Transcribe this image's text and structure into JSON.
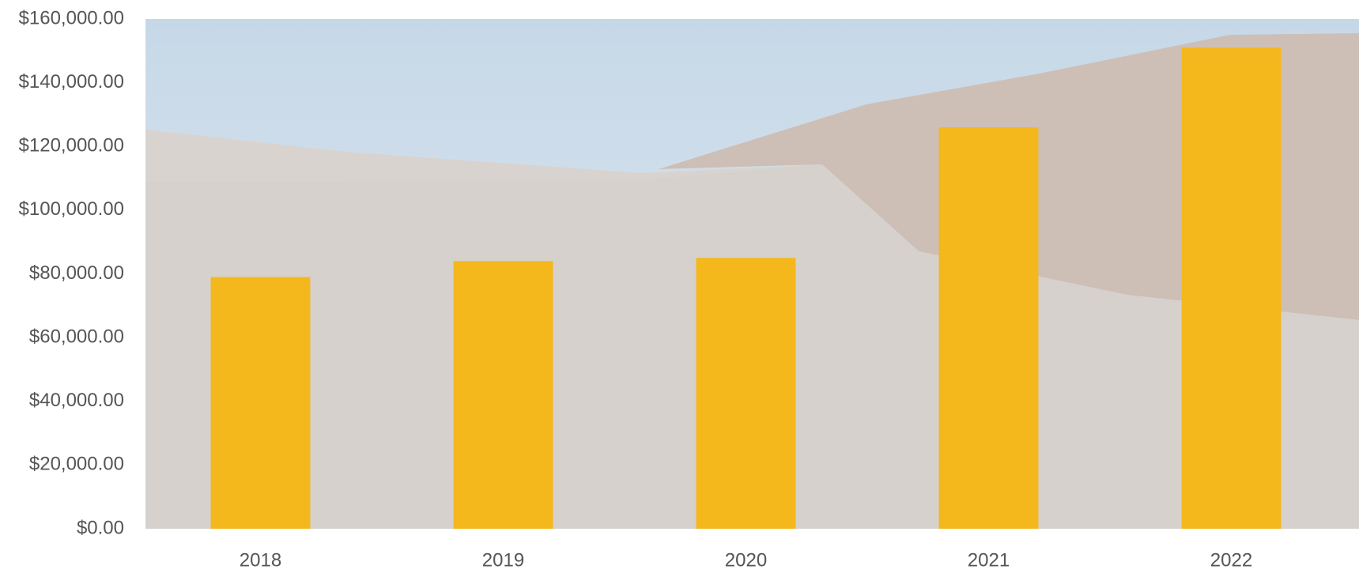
{
  "chart_data": {
    "type": "bar",
    "categories": [
      "2018",
      "2019",
      "2020",
      "2021",
      "2022"
    ],
    "values": [
      79000,
      84000,
      85000,
      126000,
      151000
    ],
    "color": "#f4b81c",
    "ylim": [
      0,
      160000
    ],
    "yticks": [
      {
        "value": 0,
        "label": "$0.00"
      },
      {
        "value": 20000,
        "label": "$20,000.00"
      },
      {
        "value": 40000,
        "label": "$40,000.00"
      },
      {
        "value": 60000,
        "label": "$60,000.00"
      },
      {
        "value": 80000,
        "label": "$80,000.00"
      },
      {
        "value": 100000,
        "label": "$100,000.00"
      },
      {
        "value": 120000,
        "label": "$120,000.00"
      },
      {
        "value": 140000,
        "label": "$140,000.00"
      },
      {
        "value": 160000,
        "label": "$160,000.00"
      }
    ],
    "grid": false
  }
}
